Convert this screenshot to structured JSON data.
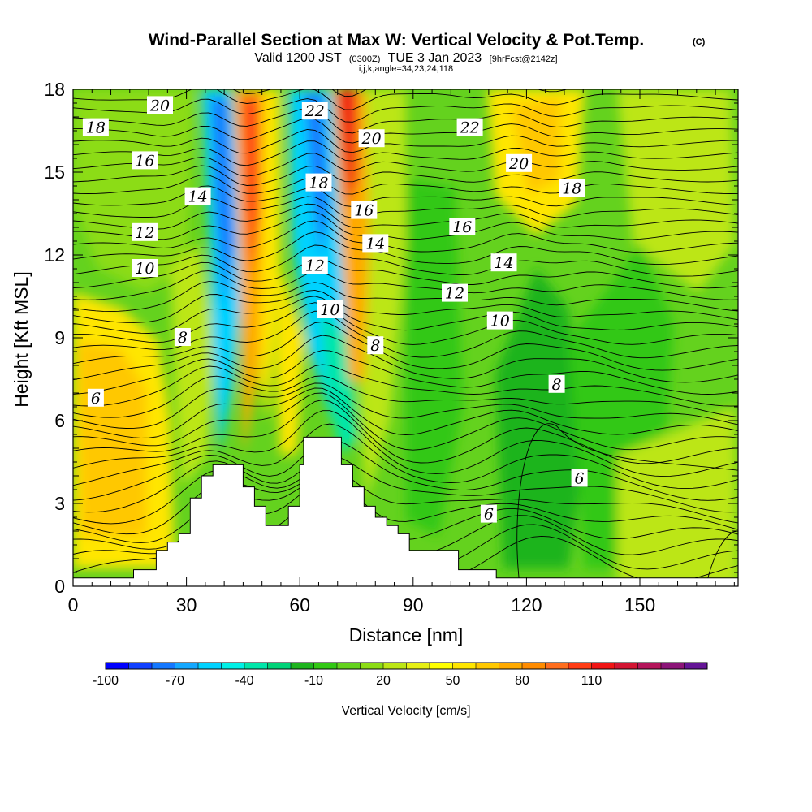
{
  "chart_data": {
    "type": "heatmap",
    "title": "Wind-Parallel Section at Max W: Vertical Velocity & Pot.Temp.",
    "title_mark": "(C)",
    "subtitle_valid": "Valid 1200 JST",
    "subtitle_utc": "(0300Z)",
    "subtitle_date": "TUE 3 Jan 2023",
    "subtitle_fcst": "[9hrFcst@2142z]",
    "subtitle_params": "i,j,k,angle=34,23,24,118",
    "xlabel": "Distance [nm]",
    "ylabel": "Height [Kft MSL]",
    "xlim": [
      0,
      176
    ],
    "ylim": [
      0,
      18
    ],
    "x_ticks": [
      "0",
      "30",
      "60",
      "90",
      "120",
      "150"
    ],
    "y_ticks": [
      "0",
      "3",
      "6",
      "9",
      "12",
      "15",
      "18"
    ],
    "colorbar": {
      "label": "Vertical Velocity [cm/s]",
      "tick_labels": [
        "-100",
        "-70",
        "-40",
        "-10",
        "20",
        "50",
        "80",
        "110"
      ],
      "colors": [
        "#0000ff",
        "#1040ff",
        "#1478ff",
        "#14a8ff",
        "#00d2ff",
        "#00f0e6",
        "#00e6aa",
        "#00d278",
        "#1eb41e",
        "#32c814",
        "#64d21e",
        "#8cdc14",
        "#bce614",
        "#e6f014",
        "#ffff00",
        "#ffe600",
        "#ffc800",
        "#ffaa00",
        "#ff8c00",
        "#ff6e1e",
        "#ff3c14",
        "#f01414",
        "#d21432",
        "#b4145a",
        "#8c1478",
        "#641496"
      ]
    },
    "terrain": [
      [
        0,
        0.3
      ],
      [
        16,
        0.3
      ],
      [
        16,
        0.6
      ],
      [
        22,
        0.6
      ],
      [
        22,
        1.3
      ],
      [
        25,
        1.3
      ],
      [
        25,
        1.6
      ],
      [
        28,
        1.6
      ],
      [
        28,
        1.9
      ],
      [
        31,
        1.9
      ],
      [
        31,
        3.2
      ],
      [
        34,
        3.2
      ],
      [
        34,
        4.0
      ],
      [
        37,
        4.0
      ],
      [
        37,
        4.4
      ],
      [
        45,
        4.4
      ],
      [
        45,
        3.6
      ],
      [
        48,
        3.6
      ],
      [
        48,
        2.9
      ],
      [
        51,
        2.9
      ],
      [
        51,
        2.2
      ],
      [
        57,
        2.2
      ],
      [
        57,
        2.9
      ],
      [
        60,
        2.9
      ],
      [
        60,
        4.4
      ],
      [
        61,
        4.4
      ],
      [
        61,
        5.4
      ],
      [
        71,
        5.4
      ],
      [
        71,
        4.4
      ],
      [
        74,
        4.4
      ],
      [
        74,
        3.6
      ],
      [
        77,
        3.6
      ],
      [
        77,
        2.9
      ],
      [
        80,
        2.9
      ],
      [
        80,
        2.5
      ],
      [
        83,
        2.5
      ],
      [
        83,
        2.2
      ],
      [
        86,
        2.2
      ],
      [
        86,
        1.9
      ],
      [
        89,
        1.9
      ],
      [
        89,
        1.3
      ],
      [
        102,
        1.3
      ],
      [
        102,
        0.6
      ],
      [
        112,
        0.6
      ],
      [
        112,
        0.3
      ],
      [
        176,
        0.3
      ]
    ],
    "theta_contour_labels": [
      {
        "text": "20",
        "x": 23,
        "y": 17.4
      },
      {
        "text": "18",
        "x": 6,
        "y": 16.6
      },
      {
        "text": "16",
        "x": 19,
        "y": 15.4
      },
      {
        "text": "14",
        "x": 33,
        "y": 14.1
      },
      {
        "text": "12",
        "x": 19,
        "y": 12.8
      },
      {
        "text": "10",
        "x": 19,
        "y": 11.5
      },
      {
        "text": "8",
        "x": 29,
        "y": 9.0
      },
      {
        "text": "6",
        "x": 6,
        "y": 6.8
      },
      {
        "text": "22",
        "x": 64,
        "y": 17.2
      },
      {
        "text": "20",
        "x": 79,
        "y": 16.2
      },
      {
        "text": "18",
        "x": 65,
        "y": 14.6
      },
      {
        "text": "16",
        "x": 77,
        "y": 13.6
      },
      {
        "text": "14",
        "x": 80,
        "y": 12.4
      },
      {
        "text": "12",
        "x": 64,
        "y": 11.6
      },
      {
        "text": "10",
        "x": 68,
        "y": 10.0
      },
      {
        "text": "8",
        "x": 80,
        "y": 8.7
      },
      {
        "text": "22",
        "x": 105,
        "y": 16.6
      },
      {
        "text": "20",
        "x": 118,
        "y": 15.3
      },
      {
        "text": "18",
        "x": 132,
        "y": 14.4
      },
      {
        "text": "16",
        "x": 103,
        "y": 13.0
      },
      {
        "text": "14",
        "x": 114,
        "y": 11.7
      },
      {
        "text": "12",
        "x": 101,
        "y": 10.6
      },
      {
        "text": "10",
        "x": 113,
        "y": 9.6
      },
      {
        "text": "8",
        "x": 128,
        "y": 7.3
      },
      {
        "text": "6",
        "x": 134,
        "y": 3.9
      },
      {
        "text": "6",
        "x": 110,
        "y": 2.6
      }
    ]
  }
}
